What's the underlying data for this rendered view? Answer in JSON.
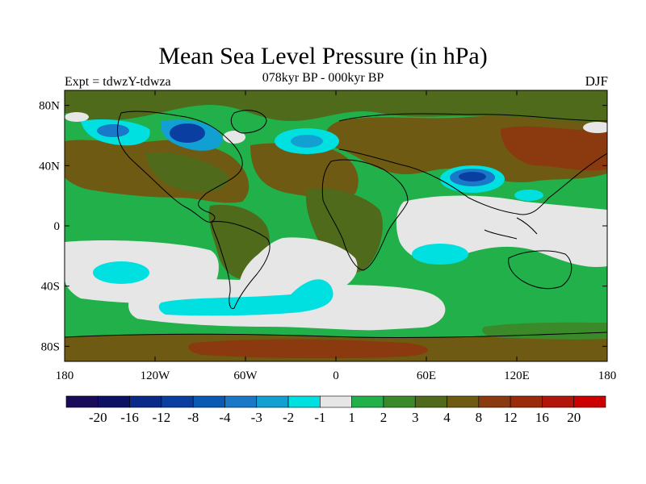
{
  "title": "Mean Sea Level Pressure (in hPa)",
  "subtitle": "078kyr BP - 000kyr BP",
  "experiment": "Expt = tdwzY-tdwza",
  "season": "DJF",
  "lat_ticks": [
    "80N",
    "40N",
    "0",
    "40S",
    "80S"
  ],
  "lon_ticks": [
    "180",
    "120W",
    "60W",
    "0",
    "60E",
    "120E",
    "180"
  ],
  "colorbar": {
    "colors": [
      "#1a0a5a",
      "#0d1166",
      "#0a2a8a",
      "#0a3ea0",
      "#0a5ab4",
      "#1a78c8",
      "#12a0d2",
      "#00e0e0",
      "#e6e6e6",
      "#22b04a",
      "#3a8a2a",
      "#4e6a1a",
      "#6e5a12",
      "#8a3a0e",
      "#9a2a0a",
      "#b2160a",
      "#cc0000"
    ],
    "labels": [
      "-20",
      "-16",
      "-12",
      "-8",
      "-4",
      "-3",
      "-2",
      "-1",
      "1",
      "2",
      "3",
      "4",
      "8",
      "12",
      "16",
      "20"
    ]
  },
  "palette": {
    "neg_1_2": "#00e0e0",
    "neg_2_3": "#12a0d2",
    "neg_3_4": "#1a78c8",
    "neg_4_8": "#0a5ab4",
    "near_zero": "#e6e6e6",
    "pos_1_2": "#22b04a",
    "pos_2_3": "#3a8a2a",
    "pos_3_4": "#4e6a1a",
    "pos_4_8": "#6e5a12",
    "pos_8_12": "#8a3a0e"
  }
}
